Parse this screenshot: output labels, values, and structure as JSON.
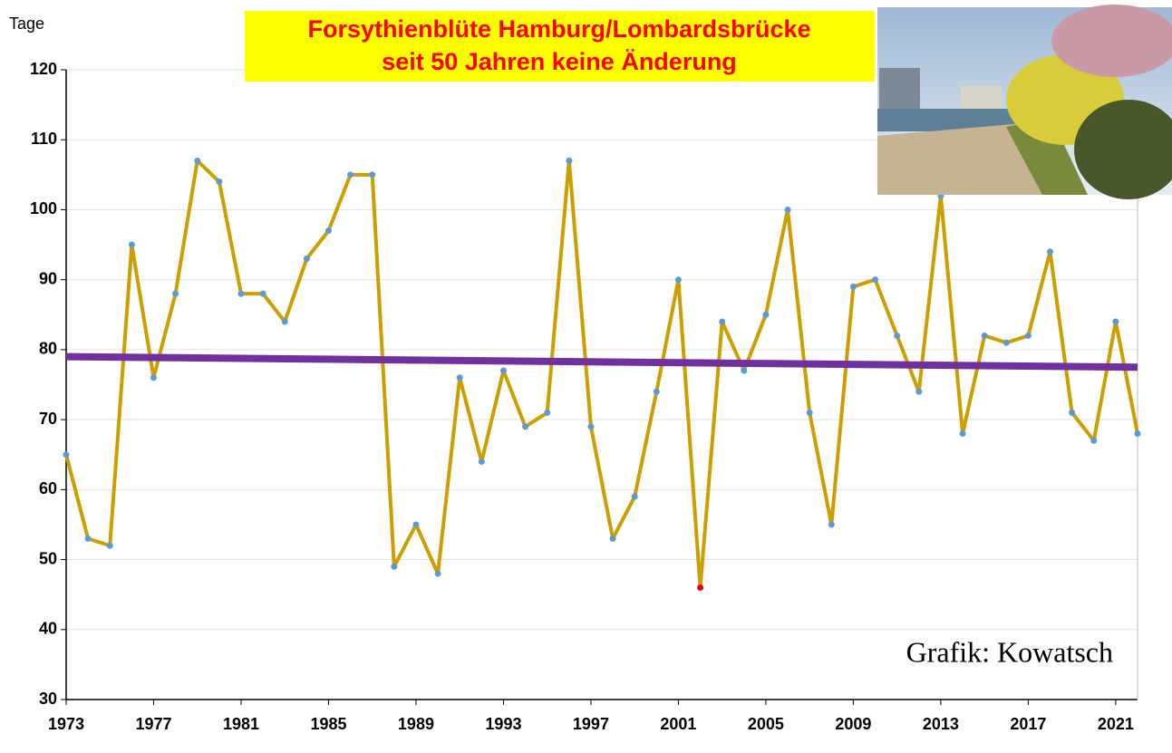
{
  "chart_data": {
    "type": "line",
    "title": "Forsythienblüte Hamburg/Lombardsbrücke",
    "subtitle": "seit 50 Jahren keine Änderung",
    "y_label": "Tage",
    "annotation": "Grafik: Kowatsch",
    "x": [
      1973,
      1974,
      1975,
      1976,
      1977,
      1978,
      1979,
      1980,
      1981,
      1982,
      1983,
      1984,
      1985,
      1986,
      1987,
      1988,
      1989,
      1990,
      1991,
      1992,
      1993,
      1994,
      1995,
      1996,
      1997,
      1998,
      1999,
      2000,
      2001,
      2002,
      2003,
      2004,
      2005,
      2006,
      2007,
      2008,
      2009,
      2010,
      2011,
      2012,
      2013,
      2014,
      2015,
      2016,
      2017,
      2018,
      2019,
      2020,
      2021,
      2022
    ],
    "values": [
      65,
      53,
      52,
      95,
      76,
      88,
      107,
      104,
      88,
      88,
      84,
      93,
      97,
      105,
      105,
      49,
      55,
      48,
      76,
      64,
      77,
      69,
      71,
      107,
      69,
      53,
      59,
      74,
      90,
      46,
      84,
      77,
      85,
      100,
      71,
      55,
      89,
      90,
      82,
      74,
      102,
      68,
      82,
      81,
      82,
      94,
      71,
      67,
      84,
      68
    ],
    "color": "#cc9e00",
    "marker_color": "#5b9bd5",
    "highlight_x": 2002,
    "highlight_color": "#e0001a",
    "trendline": {
      "x": [
        1973,
        2022
      ],
      "values": [
        79,
        77.5
      ],
      "color": "#7030a0"
    },
    "xlim": [
      1973,
      2022
    ],
    "xticks": [
      1973,
      1977,
      1981,
      1985,
      1989,
      1993,
      1997,
      2001,
      2005,
      2009,
      2013,
      2017,
      2021
    ],
    "ylim": [
      30,
      120
    ],
    "yticks": [
      30,
      40,
      50,
      60,
      70,
      80,
      90,
      100,
      110,
      120
    ],
    "grid": true
  }
}
